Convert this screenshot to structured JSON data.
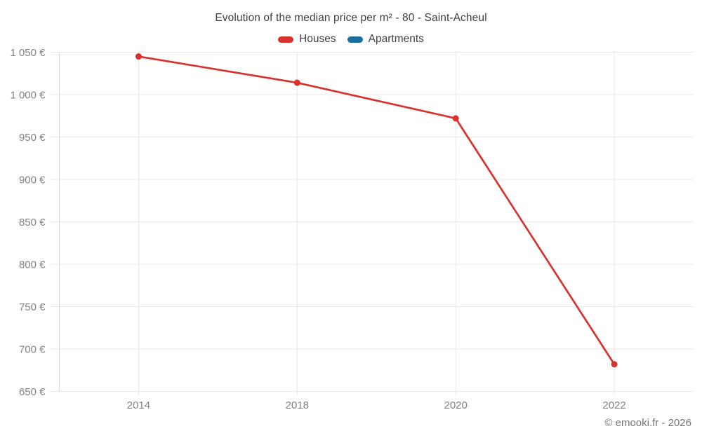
{
  "chart": {
    "title": "Evolution of the median price per m² - 80 - Saint-Acheul",
    "footer": "© emooki.fr - 2026"
  },
  "chart_data": {
    "type": "line",
    "title": "Evolution of the median price per m² - 80 - Saint-Acheul",
    "categories": [
      "2014",
      "2018",
      "2020",
      "2022"
    ],
    "series": [
      {
        "name": "Houses",
        "color": "#d8322e",
        "values": [
          1045,
          1014,
          972,
          682
        ]
      },
      {
        "name": "Apartments",
        "color": "#1a6f9e",
        "values": []
      }
    ],
    "ylim": [
      650,
      1050
    ],
    "ytick_step": 50,
    "yticks": [
      {
        "v": 650,
        "label": "650 €"
      },
      {
        "v": 700,
        "label": "700 €"
      },
      {
        "v": 750,
        "label": "750 €"
      },
      {
        "v": 800,
        "label": "800 €"
      },
      {
        "v": 850,
        "label": "850 €"
      },
      {
        "v": 900,
        "label": "900 €"
      },
      {
        "v": 950,
        "label": "950 €"
      },
      {
        "v": 1000,
        "label": "1 000 €"
      },
      {
        "v": 1050,
        "label": "1 050 €"
      }
    ],
    "grid": true,
    "legend_position": "top",
    "footer": "© emooki.fr - 2026",
    "colors": {
      "gridline": "#e7e7e7",
      "axis_line": "#d9d9d9",
      "axis_text": "#828282",
      "title_text": "#3f3f3f",
      "footer_text": "#757575"
    }
  }
}
